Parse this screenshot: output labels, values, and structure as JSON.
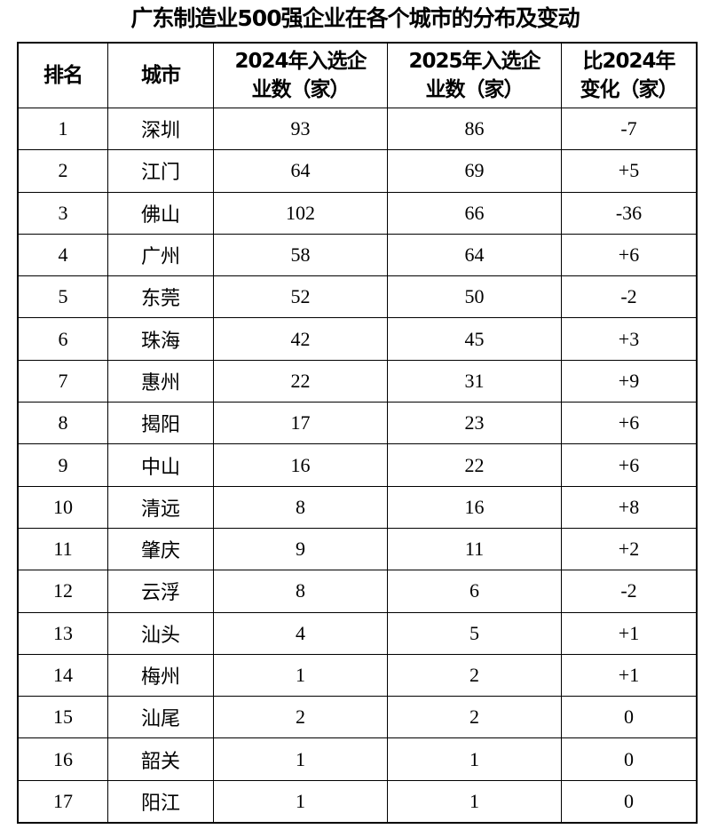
{
  "title": "广东制造业500强企业在各个城市的分布及变动",
  "headers": [
    "排名",
    "城市",
    "2024年入选企业数（家）",
    "2025年入选企业数（家）",
    "比2024年变化（家）"
  ],
  "headers_lines": [
    [
      "排名"
    ],
    [
      "城市"
    ],
    [
      "2024年入选企",
      "业数（家）"
    ],
    [
      "2025年入选企",
      "业数（家）"
    ],
    [
      "比2024年变",
      "化（家）"
    ]
  ],
  "rows": [
    [
      "1",
      "深圳",
      "93",
      "86",
      "-7"
    ],
    [
      "2",
      "江门",
      "64",
      "69",
      "+5"
    ],
    [
      "3",
      "佛山",
      "102",
      "66",
      "-36"
    ],
    [
      "4",
      "广州",
      "58",
      "64",
      "+6"
    ],
    [
      "5",
      "东莞",
      "52",
      "50",
      "-2"
    ],
    [
      "6",
      "珠海",
      "42",
      "45",
      "+3"
    ],
    [
      "7",
      "惠州",
      "22",
      "31",
      "+9"
    ],
    [
      "8",
      "揭阳",
      "17",
      "23",
      "+6"
    ],
    [
      "9",
      "中山",
      "16",
      "22",
      "+6"
    ],
    [
      "10",
      "清远",
      "8",
      "16",
      "+8"
    ],
    [
      "11",
      "肇庆",
      "9",
      "11",
      "+2"
    ],
    [
      "12",
      "云浮",
      "8",
      "6",
      "-2"
    ],
    [
      "13",
      "汕头",
      "4",
      "5",
      "+1"
    ],
    [
      "14",
      "梅州",
      "1",
      "2",
      "+1"
    ],
    [
      "15",
      "汕尾",
      "2",
      "2",
      "0"
    ],
    [
      "16",
      "韶关",
      "1",
      "1",
      "0"
    ],
    [
      "17",
      "阳江",
      "1",
      "1",
      "0"
    ]
  ]
}
